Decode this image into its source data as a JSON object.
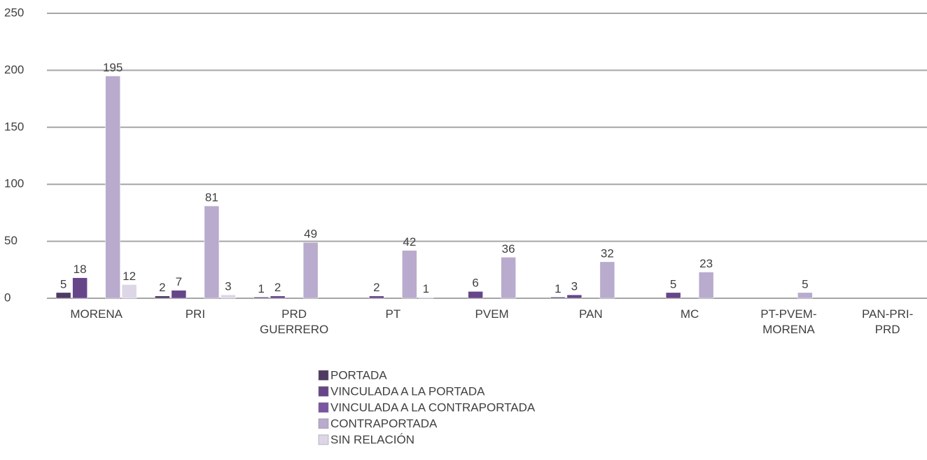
{
  "chart_data": {
    "type": "bar",
    "categories": [
      "MORENA",
      "PRI",
      "PRD\nGUERRERO",
      "PT",
      "PVEM",
      "PAN",
      "MC",
      "PT-PVEM-\nMORENA",
      "PAN-PRI-\nPRD"
    ],
    "series": [
      {
        "name": "PORTADA",
        "color": "#4e3a63",
        "values": [
          5,
          2,
          1,
          null,
          null,
          1,
          null,
          null,
          null
        ]
      },
      {
        "name": "VINCULADA A LA PORTADA",
        "color": "#664689",
        "values": [
          18,
          7,
          2,
          2,
          6,
          3,
          5,
          null,
          null
        ]
      },
      {
        "name": "VINCULADA A LA CONTRAPORTADA",
        "color": "#7a55a2",
        "values": [
          null,
          null,
          null,
          null,
          null,
          null,
          null,
          null,
          null
        ]
      },
      {
        "name": "CONTRAPORTADA",
        "color": "#b9abcd",
        "values": [
          195,
          81,
          49,
          42,
          36,
          32,
          23,
          5,
          null
        ]
      },
      {
        "name": "SIN RELACIÓN",
        "color": "#ddd6e7",
        "values": [
          12,
          3,
          null,
          1,
          null,
          null,
          null,
          null,
          null
        ]
      }
    ],
    "ylim": [
      0,
      250
    ],
    "yticks": [
      0,
      50,
      100,
      150,
      200,
      250
    ],
    "grid": true,
    "legend": "bottom"
  }
}
